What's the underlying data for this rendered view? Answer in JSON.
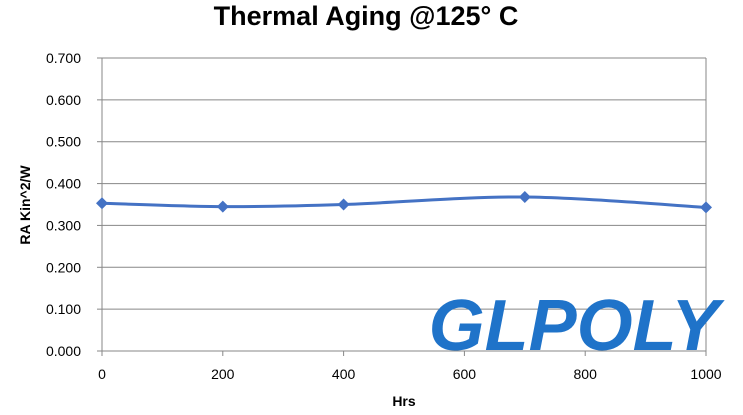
{
  "chart_data": {
    "type": "line",
    "title": "Thermal Aging @125° C",
    "xlabel": "Hrs",
    "ylabel": "RA  Kin^2/W",
    "xlim": [
      0,
      1000
    ],
    "ylim": [
      0,
      0.7
    ],
    "x_ticks": [
      "0",
      "200",
      "400",
      "600",
      "800",
      "1000"
    ],
    "y_ticks": [
      "0.000",
      "0.100",
      "0.200",
      "0.300",
      "0.400",
      "0.500",
      "0.600",
      "0.700"
    ],
    "grid": true,
    "legend": "none",
    "series": [
      {
        "x": [
          0,
          200,
          400,
          700,
          1000
        ],
        "values": [
          0.353,
          0.345,
          0.35,
          0.368,
          0.343
        ],
        "color": "#4472c4",
        "marker": "diamond"
      }
    ]
  },
  "watermark": "GLPOLY",
  "colors": {
    "line": "#4472c4",
    "grid": "#878787",
    "watermark": "#1f73c9"
  }
}
